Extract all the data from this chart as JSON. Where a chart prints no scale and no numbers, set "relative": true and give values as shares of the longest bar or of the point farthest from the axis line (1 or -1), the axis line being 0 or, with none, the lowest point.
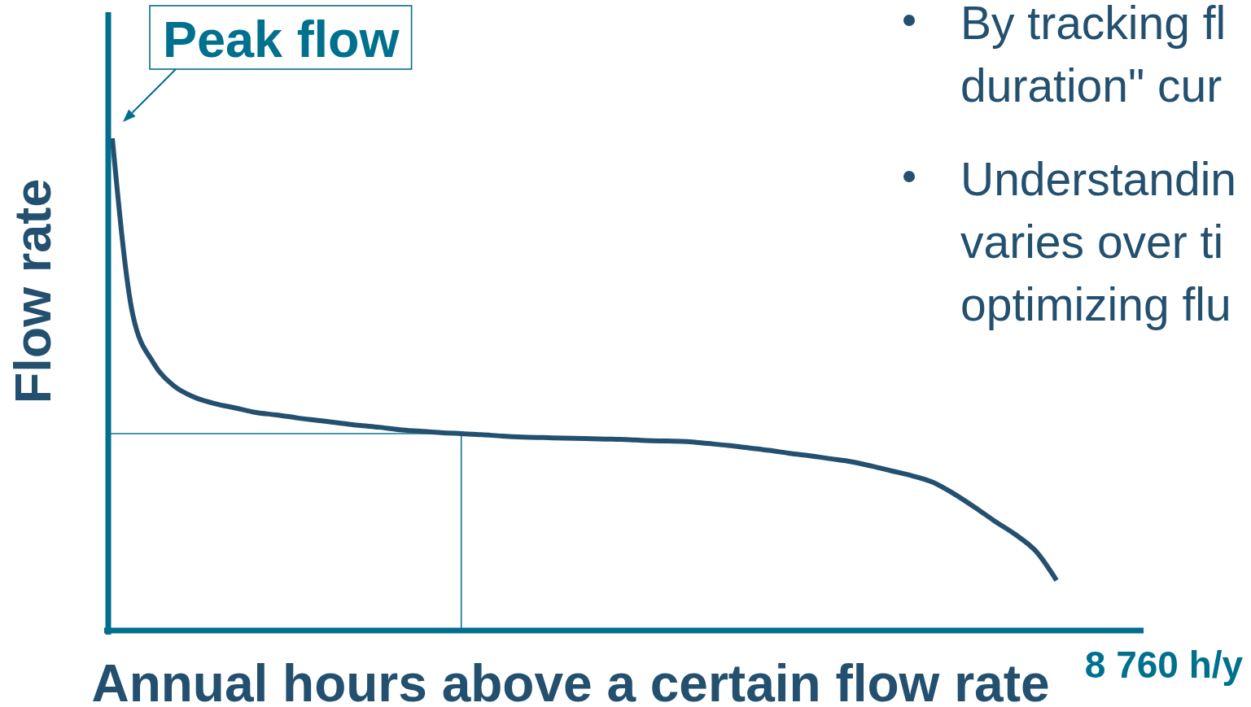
{
  "chart_data": {
    "type": "line",
    "xlabel": "Annual hours above a certain flow rate",
    "ylabel": "Flow rate",
    "relative": true,
    "categories": [
      null,
      null,
      null,
      null,
      null,
      null,
      null,
      null,
      null,
      null,
      null,
      null,
      null,
      null,
      null,
      null,
      null,
      null,
      null,
      null,
      null,
      null,
      null,
      null,
      null,
      null,
      null,
      null,
      null,
      null,
      null,
      null,
      null,
      null,
      null,
      null,
      null,
      null,
      null,
      null,
      null,
      null,
      null,
      null,
      null,
      null,
      null
    ],
    "series": [
      {
        "color": "#24506f",
        "values": [
          1.0,
          0.641,
          0.544,
          0.497,
          0.474,
          0.461,
          0.452,
          0.443,
          0.438,
          0.432,
          0.427,
          0.422,
          0.417,
          0.413,
          0.408,
          0.405,
          0.402,
          0.4,
          0.398,
          0.395,
          0.393,
          0.392,
          0.391,
          0.39,
          0.389,
          0.388,
          0.386,
          0.385,
          0.384,
          0.38,
          0.376,
          0.371,
          0.366,
          0.36,
          0.355,
          0.349,
          0.343,
          0.334,
          0.324,
          0.314,
          0.301,
          0.278,
          0.251,
          0.222,
          0.195,
          0.161,
          0.102
        ]
      }
    ],
    "ref_lines": [
      {
        "axis": "y",
        "value": 0.4,
        "color": "#0e7591"
      }
    ],
    "annotations": [
      "Peak flow",
      "By tracking fl\nduration\" cur",
      "Understandin\nvaries over ti\noptimizing flu",
      "8 760 h/y"
    ]
  }
}
